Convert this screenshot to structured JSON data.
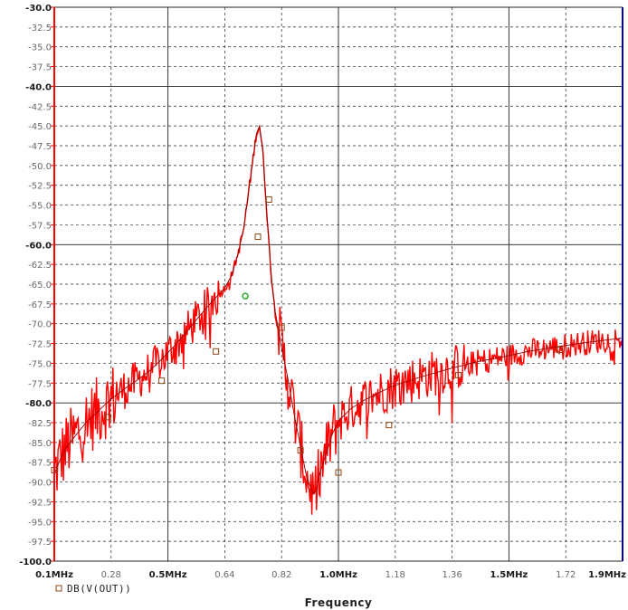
{
  "chart_data": {
    "type": "line",
    "xlabel": "Frequency",
    "x_ticks": [
      {
        "value": 0.1,
        "label": "0.1MHz",
        "major": true
      },
      {
        "value": 0.28,
        "label": "0.28",
        "major": false
      },
      {
        "value": 0.46,
        "label": "0.5MHz",
        "major": true
      },
      {
        "value": 0.64,
        "label": "0.64",
        "major": false
      },
      {
        "value": 0.82,
        "label": "0.82",
        "major": false
      },
      {
        "value": 1.0,
        "label": "1.0MHz",
        "major": true
      },
      {
        "value": 1.18,
        "label": "1.18",
        "major": false
      },
      {
        "value": 1.36,
        "label": "1.36",
        "major": false
      },
      {
        "value": 1.54,
        "label": "1.5MHz",
        "major": true
      },
      {
        "value": 1.72,
        "label": "1.72",
        "major": false
      },
      {
        "value": 1.9,
        "label": "1.9MHz",
        "major": true
      }
    ],
    "y_ticks": [
      {
        "value": -30,
        "label": "-30.0",
        "major": true
      },
      {
        "value": -32.5,
        "label": "-32.5",
        "major": false
      },
      {
        "value": -35,
        "label": "-35.0",
        "major": false
      },
      {
        "value": -37.5,
        "label": "-37.5",
        "major": false
      },
      {
        "value": -40,
        "label": "-40.0",
        "major": true
      },
      {
        "value": -42.5,
        "label": "-42.5",
        "major": false
      },
      {
        "value": -45,
        "label": "-45.0",
        "major": false
      },
      {
        "value": -47.5,
        "label": "-47.5",
        "major": false
      },
      {
        "value": -50,
        "label": "-50.0",
        "major": false
      },
      {
        "value": -52.5,
        "label": "-52.5",
        "major": false
      },
      {
        "value": -55,
        "label": "-55.0",
        "major": false
      },
      {
        "value": -57.5,
        "label": "-57.5",
        "major": false
      },
      {
        "value": -60,
        "label": "-60.0",
        "major": true
      },
      {
        "value": -62.5,
        "label": "-62.5",
        "major": false
      },
      {
        "value": -65,
        "label": "-65.0",
        "major": false
      },
      {
        "value": -67.5,
        "label": "-67.5",
        "major": false
      },
      {
        "value": -70,
        "label": "-70.0",
        "major": false
      },
      {
        "value": -72.5,
        "label": "-72.5",
        "major": false
      },
      {
        "value": -75,
        "label": "-75.0",
        "major": false
      },
      {
        "value": -77.5,
        "label": "-77.5",
        "major": false
      },
      {
        "value": -80,
        "label": "-80.0",
        "major": true
      },
      {
        "value": -82.5,
        "label": "-82.5",
        "major": false
      },
      {
        "value": -85,
        "label": "-85.0",
        "major": false
      },
      {
        "value": -87.5,
        "label": "-87.5",
        "major": false
      },
      {
        "value": -90,
        "label": "-90.0",
        "major": false
      },
      {
        "value": -92.5,
        "label": "-92.5",
        "major": false
      },
      {
        "value": -95,
        "label": "-95.0",
        "major": false
      },
      {
        "value": -97.5,
        "label": "-97.5",
        "major": false
      },
      {
        "value": -100,
        "label": "-100.0",
        "major": true
      }
    ],
    "xlim": [
      0.1,
      1.9
    ],
    "ylim": [
      -100,
      -30
    ],
    "grid": true,
    "legend": {
      "label": "DB(V(OUT))",
      "placement": "bottom-left"
    },
    "colors": {
      "trace": "#ff0000",
      "smooth": "#8b0000",
      "axis_left": "#ff0000",
      "axis_right": "#0000aa",
      "grid": "#222222",
      "marker": "#8b4513",
      "green_marker": "#22aa22"
    },
    "series": [
      {
        "name": "DB(V(OUT))",
        "x": [
          0.1,
          0.12,
          0.14,
          0.16,
          0.18,
          0.2,
          0.24,
          0.28,
          0.32,
          0.36,
          0.4,
          0.44,
          0.48,
          0.52,
          0.56,
          0.6,
          0.64,
          0.66,
          0.68,
          0.7,
          0.72,
          0.74,
          0.75,
          0.76,
          0.77,
          0.78,
          0.79,
          0.8,
          0.82,
          0.84,
          0.86,
          0.88,
          0.9,
          0.92,
          0.93,
          0.94,
          0.96,
          0.98,
          1.0,
          1.04,
          1.08,
          1.12,
          1.16,
          1.2,
          1.28,
          1.36,
          1.44,
          1.52,
          1.6,
          1.68,
          1.76,
          1.84,
          1.9
        ],
        "values": [
          -89.0,
          -87.0,
          -85.5,
          -84.5,
          -83.5,
          -82.5,
          -81.0,
          -79.5,
          -78.3,
          -77.2,
          -76.0,
          -74.5,
          -72.8,
          -71.0,
          -69.0,
          -67.2,
          -65.5,
          -64.0,
          -61.5,
          -58.0,
          -52.0,
          -46.0,
          -45.0,
          -48.0,
          -54.0,
          -60.0,
          -65.0,
          -68.5,
          -73.0,
          -77.0,
          -81.5,
          -85.5,
          -89.5,
          -91.5,
          -91.0,
          -89.0,
          -86.5,
          -84.0,
          -82.3,
          -80.7,
          -79.7,
          -78.9,
          -78.1,
          -77.5,
          -76.5,
          -75.6,
          -74.8,
          -74.2,
          -73.5,
          -73.0,
          -72.5,
          -72.1,
          -71.8
        ]
      }
    ],
    "markers": {
      "squares": [
        {
          "x": 0.1,
          "y": -88.5
        },
        {
          "x": 0.27,
          "y": -81.8
        },
        {
          "x": 0.44,
          "y": -77.2
        },
        {
          "x": 0.612,
          "y": -73.5
        },
        {
          "x": 0.745,
          "y": -59.0
        },
        {
          "x": 0.78,
          "y": -54.3
        },
        {
          "x": 0.82,
          "y": -70.5
        },
        {
          "x": 0.88,
          "y": -86.0
        },
        {
          "x": 1.0,
          "y": -88.8
        },
        {
          "x": 1.16,
          "y": -82.8
        },
        {
          "x": 1.38,
          "y": -76.5
        },
        {
          "x": 1.7,
          "y": -73.3
        }
      ],
      "green": [
        {
          "x": 0.705,
          "y": -66.5
        }
      ]
    }
  }
}
